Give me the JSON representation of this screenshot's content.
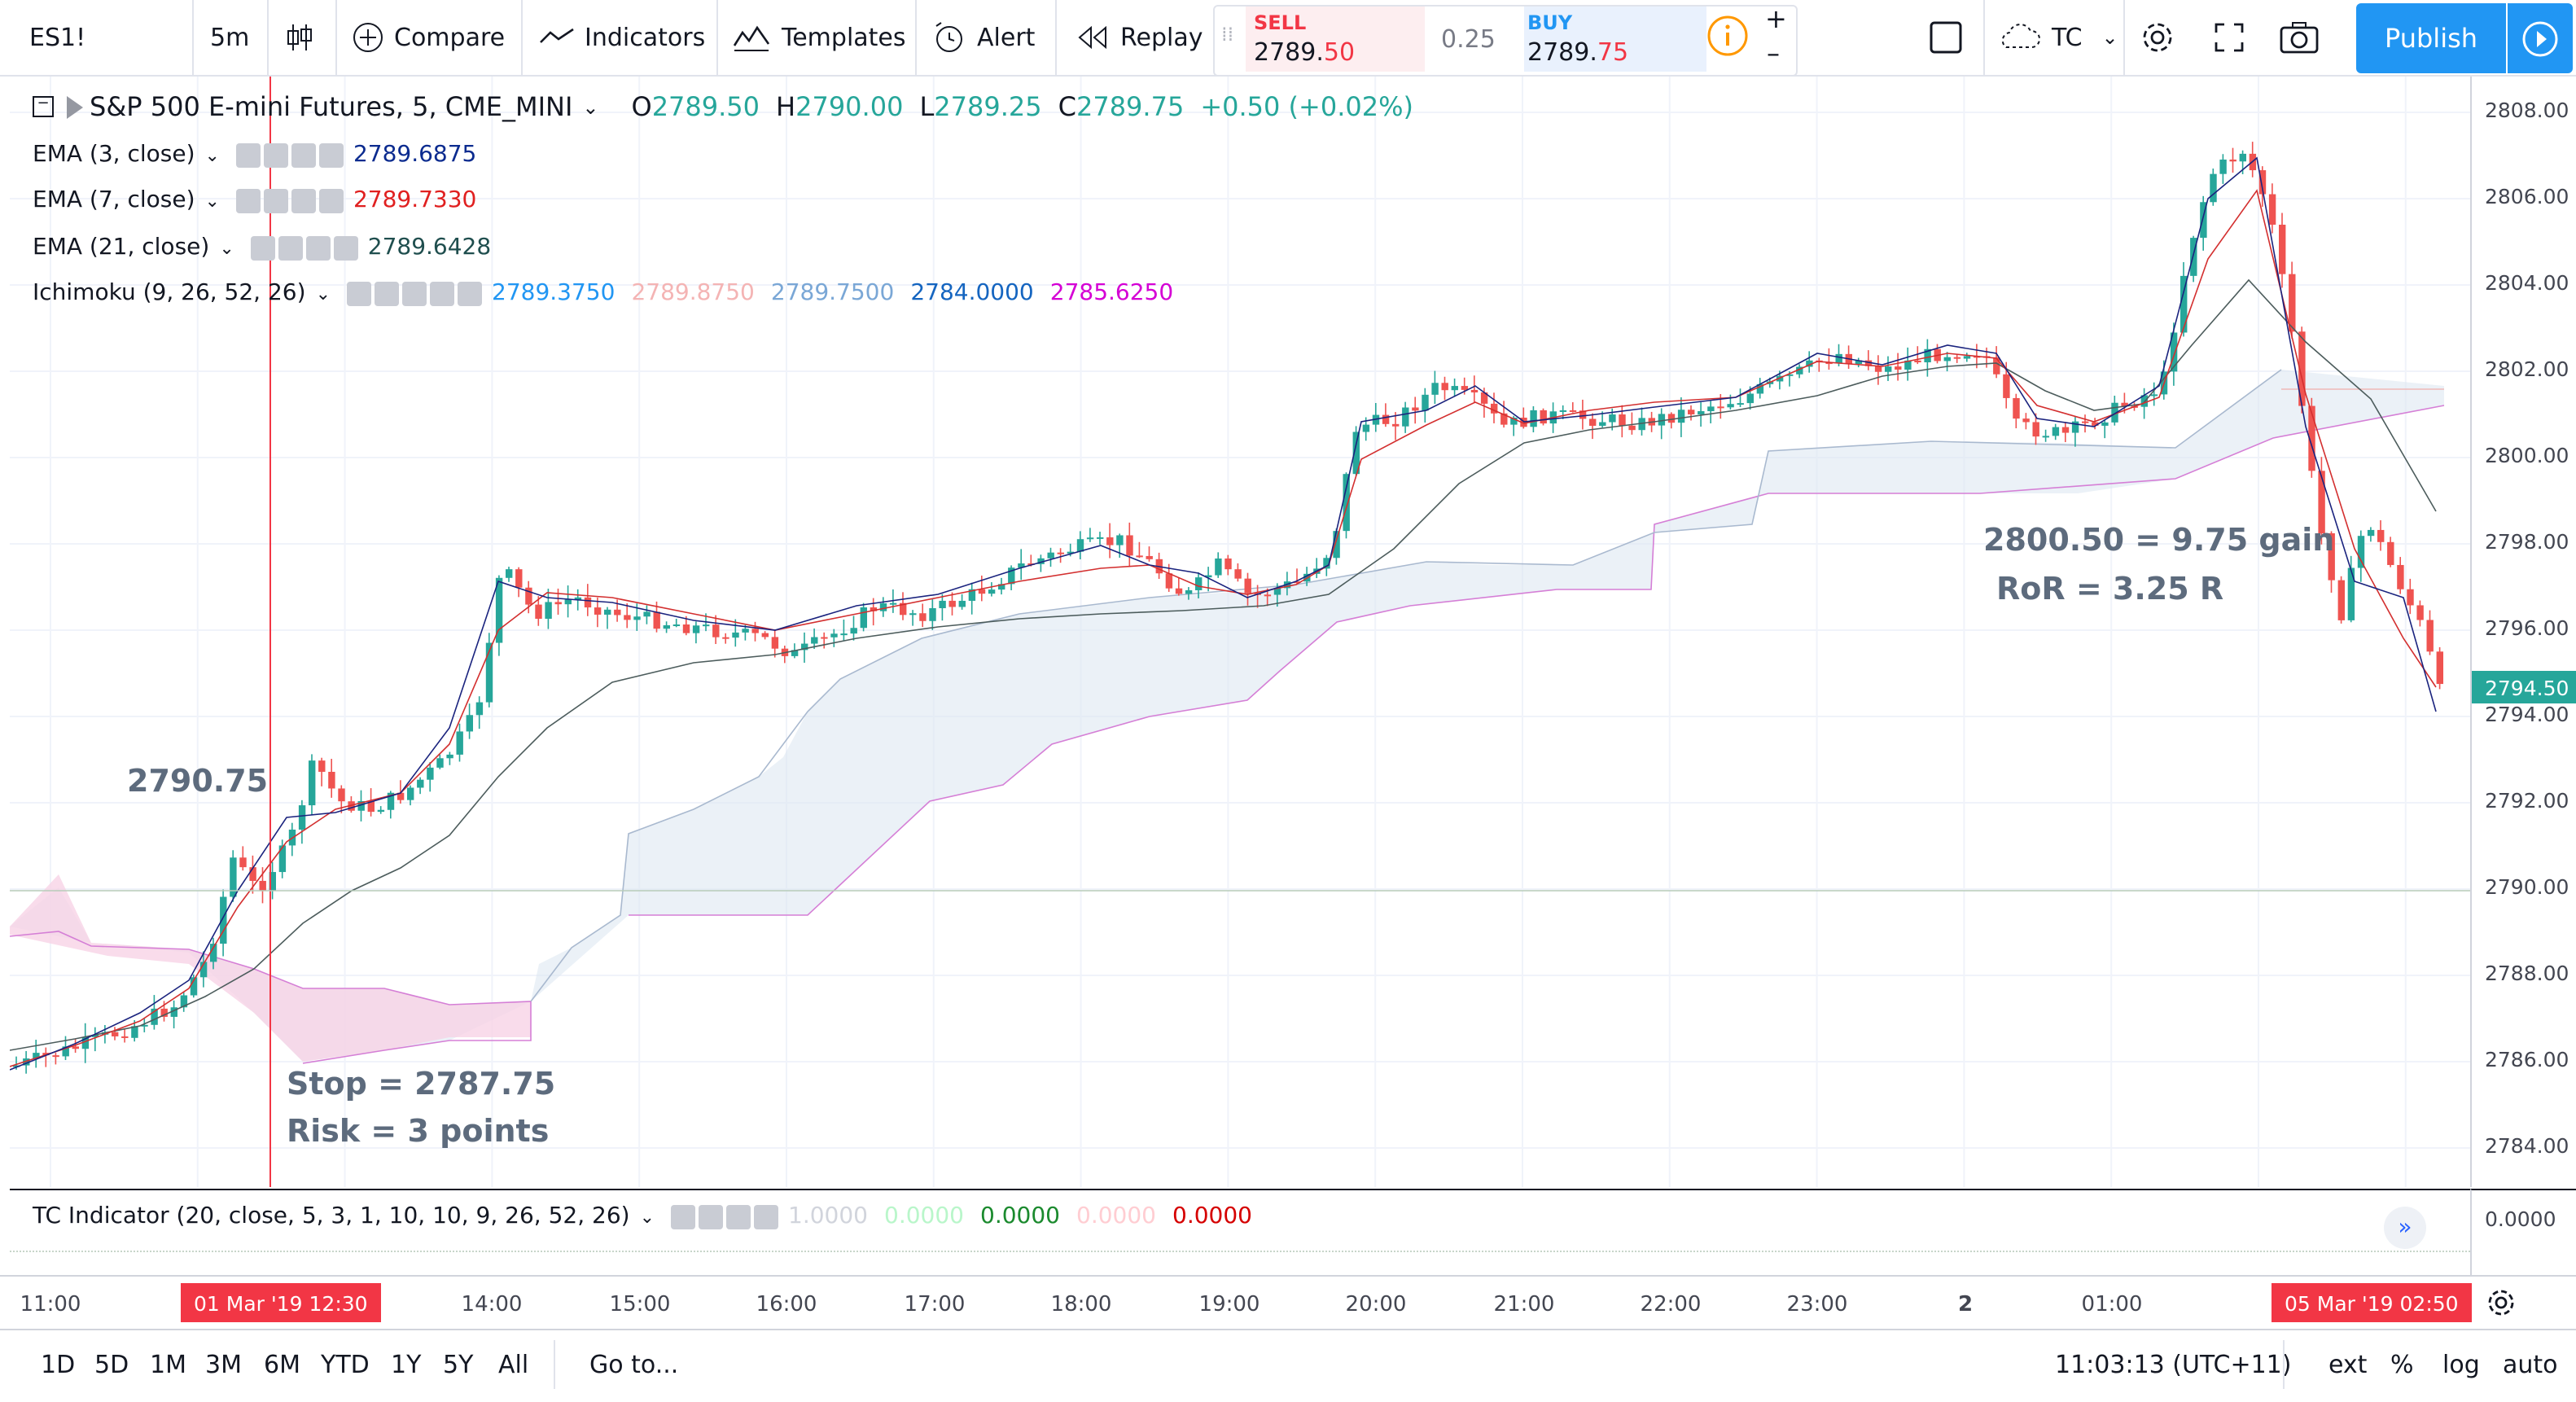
{
  "toolbar": {
    "symbol": "ES1!",
    "interval": "5m",
    "compare": "Compare",
    "indicators": "Indicators",
    "templates": "Templates",
    "alert": "Alert",
    "replay": "Replay",
    "sell_label": "SELL",
    "sell_price_a": "2789.",
    "sell_price_b": "50",
    "spread": "0.25",
    "buy_label": "BUY",
    "buy_price_a": "2789.",
    "buy_price_b": "75",
    "layout_name": "TC",
    "publish": "Publish"
  },
  "legend": {
    "title": "S&P 500 E-mini Futures, 5, CME_MINI",
    "o_label": "O",
    "o": "2789.50",
    "h_label": "H",
    "h": "2790.00",
    "l_label": "L",
    "l": "2789.25",
    "c_label": "C",
    "c": "2789.75",
    "change": "+0.50 (+0.02%)",
    "ema3_name": "EMA (3, close)",
    "ema3_val": "2789.6875",
    "ema7_name": "EMA (7, close)",
    "ema7_val": "2789.7330",
    "ema21_name": "EMA (21, close)",
    "ema21_val": "2789.6428",
    "ichi_name": "Ichimoku (9, 26, 52, 26)",
    "ichi_v1": "2789.3750",
    "ichi_v2": "2789.8750",
    "ichi_v3": "2789.7500",
    "ichi_v4": "2784.0000",
    "ichi_v5": "2785.6250"
  },
  "annotations": {
    "entry": "2790.75",
    "stop": "Stop = 2787.75",
    "risk": "Risk = 3 points",
    "gain": "2800.50 = 9.75 gain",
    "ror": "RoR = 3.25 R"
  },
  "price_axis": {
    "labels": [
      "2808.00",
      "2806.00",
      "2804.00",
      "2802.00",
      "2800.00",
      "2798.00",
      "2796.00",
      "2794.00",
      "2792.00",
      "2790.00",
      "2788.00",
      "2786.00",
      "2784.00"
    ],
    "current": "2794.50"
  },
  "indicator": {
    "name": "TC Indicator (20, close, 5, 3, 1, 10, 10, 9, 26, 52, 26)",
    "v1": "1.0000",
    "v2": "0.0000",
    "v3": "0.0000",
    "v4": "0.0000",
    "v5": "0.0000",
    "axis": "0.0000"
  },
  "time_axis": {
    "ticks": [
      "11:00",
      "14:00",
      "15:00",
      "16:00",
      "17:00",
      "18:00",
      "19:00",
      "20:00",
      "21:00",
      "22:00",
      "23:00",
      "2",
      "01:00"
    ],
    "left_tag": "01 Mar '19   12:30",
    "right_tag": "05 Mar '19   02:50"
  },
  "bottom_bar": {
    "ranges": [
      "1D",
      "5D",
      "1M",
      "3M",
      "6M",
      "YTD",
      "1Y",
      "5Y",
      "All"
    ],
    "goto": "Go to...",
    "clock": "11:03:13 (UTC+11)",
    "ext": "ext",
    "pct": "%",
    "log": "log",
    "auto": "auto"
  },
  "colors": {
    "up": "#26a69a",
    "down": "#ef5350",
    "ema3": "#0b2b8f",
    "ema7": "#e02020",
    "ema21": "#1f4e4e",
    "ichi1": "#2196f3",
    "ichi2": "#f4b4b4",
    "ichi3": "#7aa7d6",
    "ichi4": "#1565c0",
    "ichi5": "#d500d5",
    "accent": "#2196f3"
  }
}
